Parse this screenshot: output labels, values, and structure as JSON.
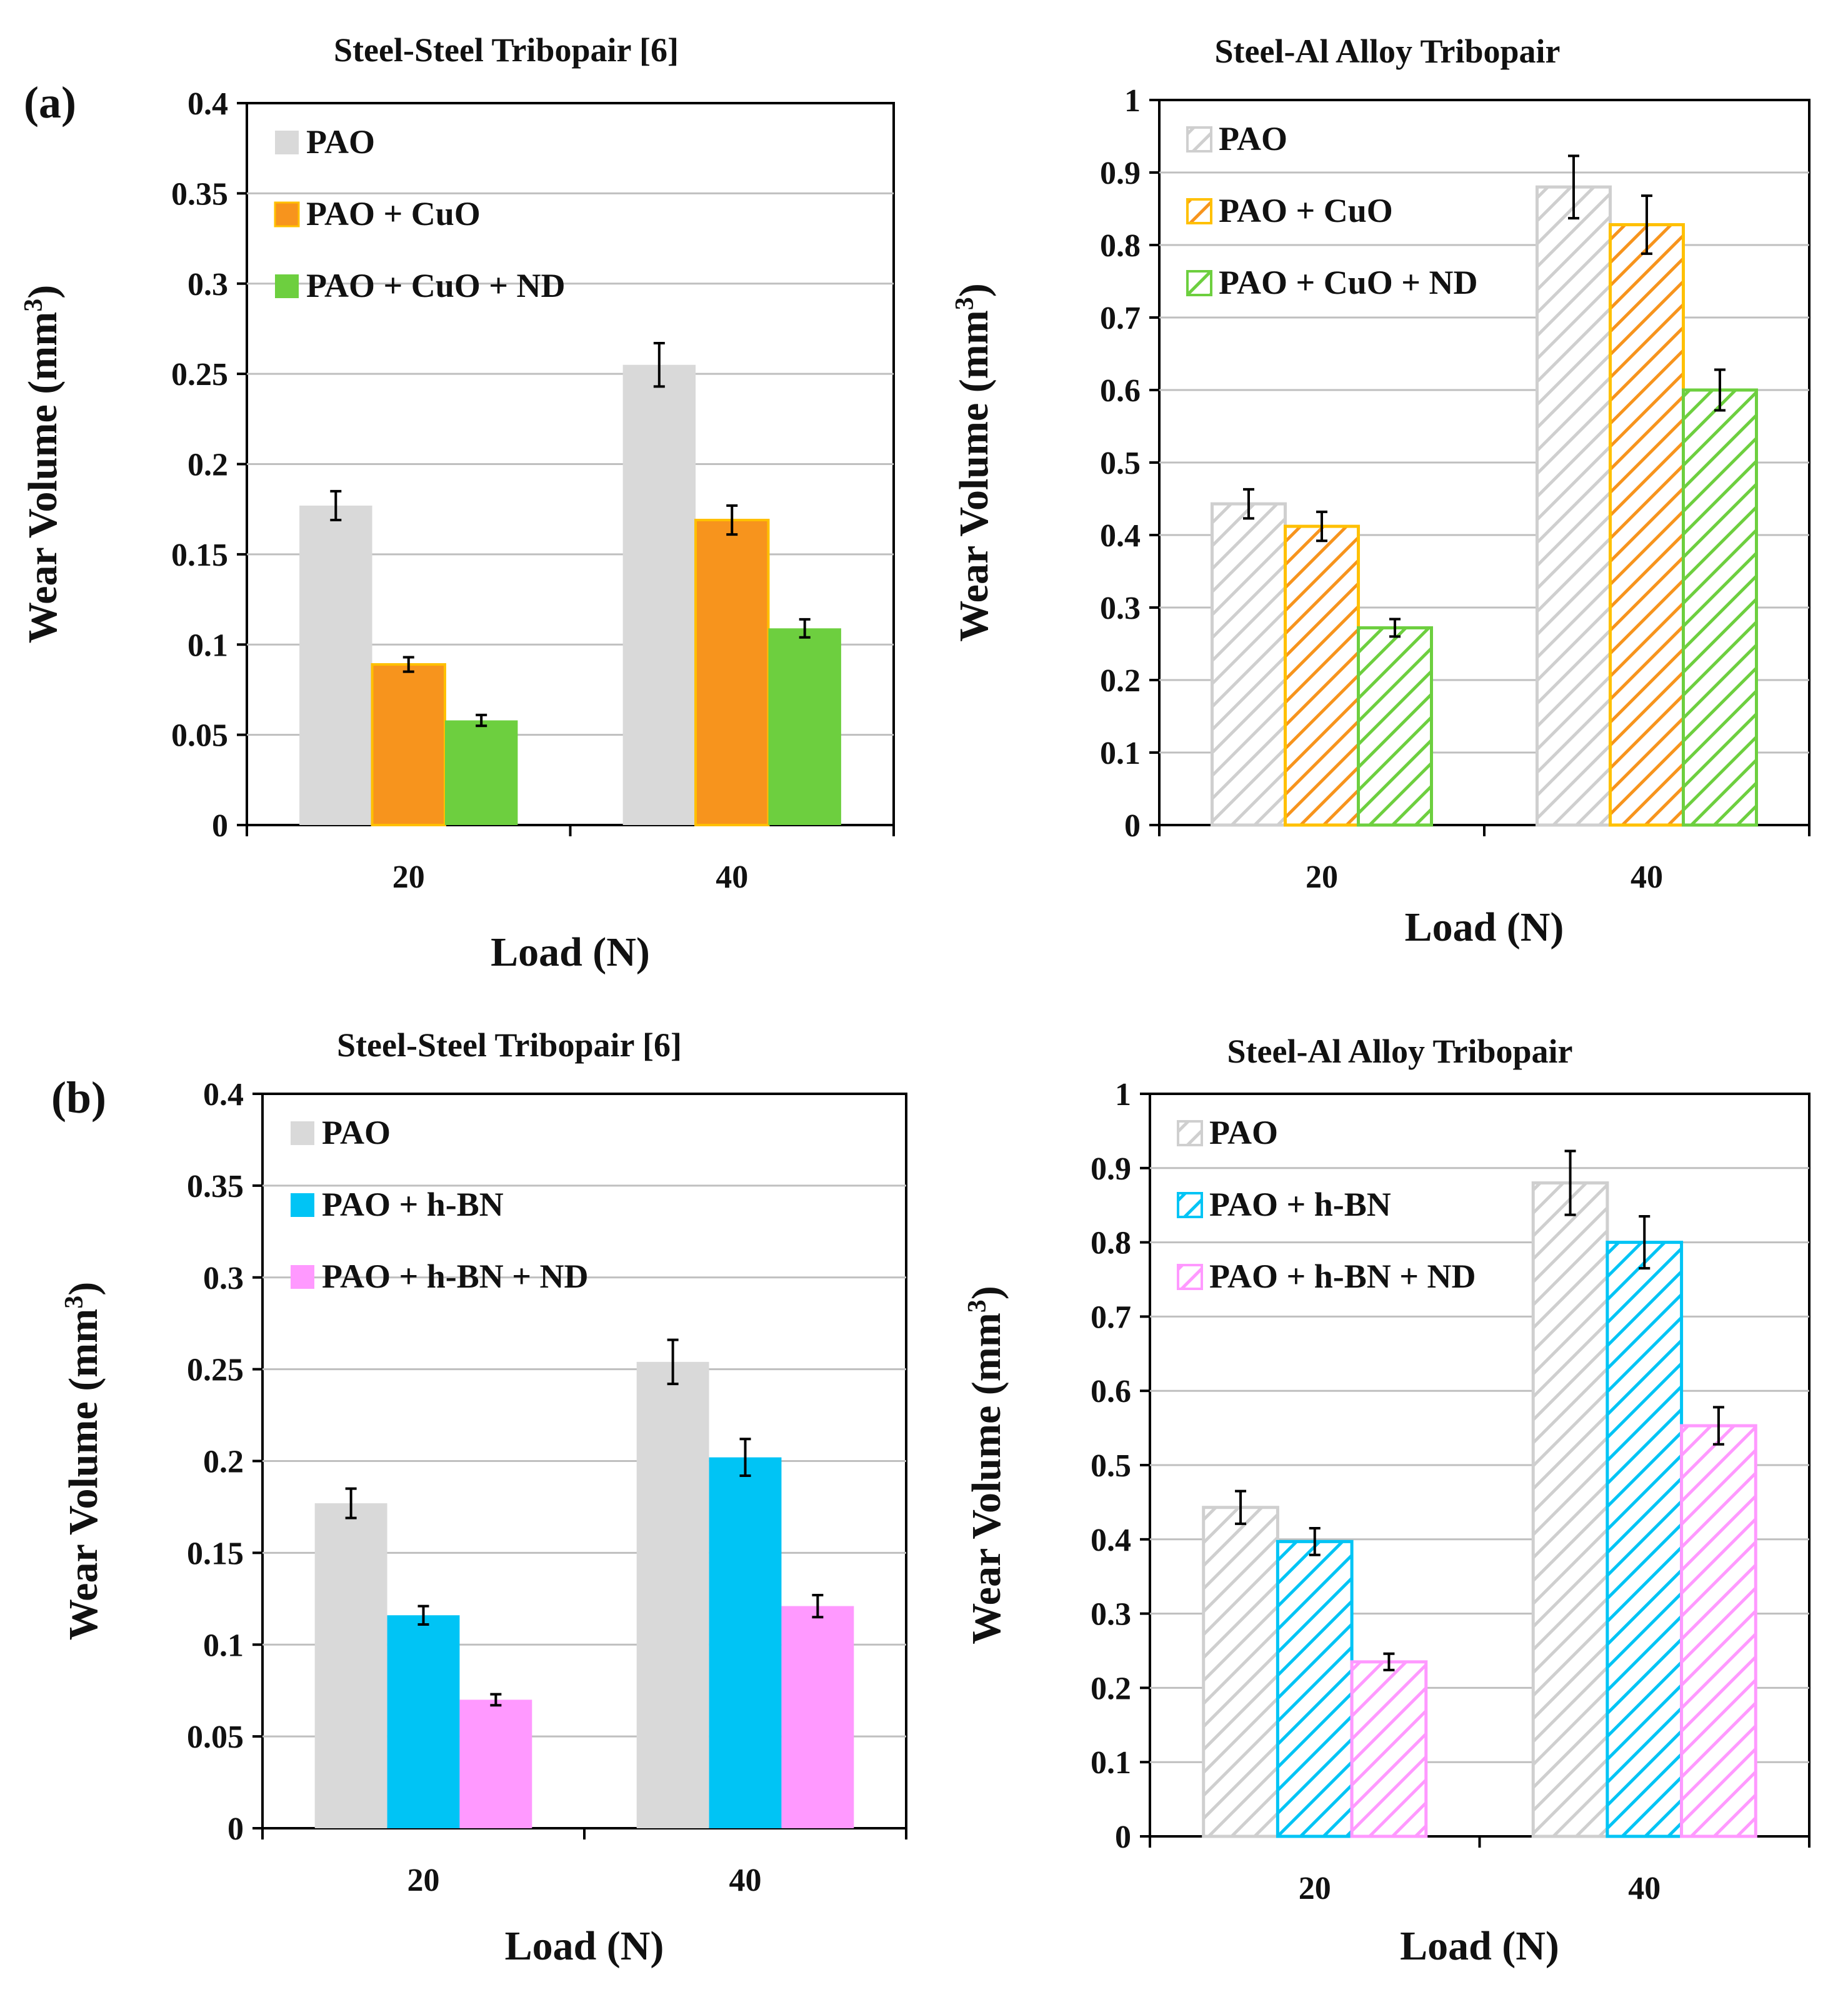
{
  "figure": {
    "panel_labels": [
      "(a)",
      "(b)"
    ]
  },
  "chart_data": [
    {
      "type": "bar",
      "style": "solid",
      "title": "Steel-Steel Tribopair [6]",
      "xlabel": "Load (N)",
      "ylabel": "Wear Volume (mm3)",
      "ylabel_main": "Wear Volume (mm",
      "ylabel_sup": "3",
      "ylabel_end": ")",
      "categories": [
        "20",
        "40"
      ],
      "ylim": [
        0,
        0.4
      ],
      "yticks": [
        0,
        0.05,
        0.1,
        0.15,
        0.2,
        0.25,
        0.3,
        0.35,
        0.4
      ],
      "ytick_labels": [
        "0",
        "0.05",
        "0.1",
        "0.15",
        "0.2",
        "0.25",
        "0.3",
        "0.35",
        "0.4"
      ],
      "grid": true,
      "legend_position": "top-left",
      "series": [
        {
          "name": "PAO",
          "values": [
            0.177,
            0.255
          ],
          "errors": [
            0.008,
            0.012
          ],
          "color": "#d9d9d9"
        },
        {
          "name": "PAO + CuO",
          "values": [
            0.089,
            0.169
          ],
          "errors": [
            0.004,
            0.008
          ],
          "color": "#f7941d",
          "edge": "#ffc000"
        },
        {
          "name": "PAO + CuO + ND",
          "values": [
            0.058,
            0.109
          ],
          "errors": [
            0.003,
            0.005
          ],
          "color": "#6dcf3f"
        }
      ]
    },
    {
      "type": "bar",
      "style": "hatched",
      "title": "Steel-Al Alloy Tribopair",
      "xlabel": "Load (N)",
      "ylabel": "Wear Volume (mm3)",
      "ylabel_main": "Wear Volume (mm",
      "ylabel_sup": "3",
      "ylabel_end": ")",
      "categories": [
        "20",
        "40"
      ],
      "ylim": [
        0,
        1
      ],
      "yticks": [
        0,
        0.1,
        0.2,
        0.3,
        0.4,
        0.5,
        0.6,
        0.7,
        0.8,
        0.9,
        1
      ],
      "ytick_labels": [
        "0",
        "0.1",
        "0.2",
        "0.3",
        "0.4",
        "0.5",
        "0.6",
        "0.7",
        "0.8",
        "0.9",
        "1"
      ],
      "grid": true,
      "legend_position": "top-left",
      "series": [
        {
          "name": "PAO",
          "values": [
            0.443,
            0.88
          ],
          "errors": [
            0.02,
            0.043
          ],
          "color": "#cfcfcf"
        },
        {
          "name": "PAO + CuO",
          "values": [
            0.412,
            0.828
          ],
          "errors": [
            0.02,
            0.04
          ],
          "color": "#f7941d",
          "edge": "#ffc000"
        },
        {
          "name": "PAO + CuO + ND",
          "values": [
            0.272,
            0.6
          ],
          "errors": [
            0.012,
            0.028
          ],
          "color": "#6dcf3f"
        }
      ]
    },
    {
      "type": "bar",
      "style": "solid",
      "title": "Steel-Steel Tribopair [6]",
      "xlabel": "Load (N)",
      "ylabel": "Wear Volume (mm3)",
      "ylabel_main": "Wear Volume (mm",
      "ylabel_sup": "3",
      "ylabel_end": ")",
      "categories": [
        "20",
        "40"
      ],
      "ylim": [
        0,
        0.4
      ],
      "yticks": [
        0,
        0.05,
        0.1,
        0.15,
        0.2,
        0.25,
        0.3,
        0.35,
        0.4
      ],
      "ytick_labels": [
        "0",
        "0.05",
        "0.1",
        "0.15",
        "0.2",
        "0.25",
        "0.3",
        "0.35",
        "0.4"
      ],
      "grid": true,
      "legend_position": "top-left",
      "series": [
        {
          "name": "PAO",
          "values": [
            0.177,
            0.254
          ],
          "errors": [
            0.008,
            0.012
          ],
          "color": "#d9d9d9"
        },
        {
          "name": "PAO + h-BN",
          "values": [
            0.116,
            0.202
          ],
          "errors": [
            0.005,
            0.01
          ],
          "color": "#00c4f5"
        },
        {
          "name": "PAO + h-BN + ND",
          "values": [
            0.07,
            0.121
          ],
          "errors": [
            0.003,
            0.006
          ],
          "color": "#ff99ff"
        }
      ]
    },
    {
      "type": "bar",
      "style": "hatched",
      "title": "Steel-Al Alloy Tribopair",
      "xlabel": "Load (N)",
      "ylabel": "Wear Volume (mm3)",
      "ylabel_main": "Wear Volume (mm",
      "ylabel_sup": "3",
      "ylabel_end": ")",
      "categories": [
        "20",
        "40"
      ],
      "ylim": [
        0,
        1
      ],
      "yticks": [
        0,
        0.1,
        0.2,
        0.3,
        0.4,
        0.5,
        0.6,
        0.7,
        0.8,
        0.9,
        1
      ],
      "ytick_labels": [
        "0",
        "0.1",
        "0.2",
        "0.3",
        "0.4",
        "0.5",
        "0.6",
        "0.7",
        "0.8",
        "0.9",
        "1"
      ],
      "grid": true,
      "legend_position": "top-left",
      "series": [
        {
          "name": "PAO",
          "values": [
            0.443,
            0.88
          ],
          "errors": [
            0.022,
            0.043
          ],
          "color": "#cfcfcf"
        },
        {
          "name": "PAO + h-BN",
          "values": [
            0.397,
            0.8
          ],
          "errors": [
            0.018,
            0.035
          ],
          "color": "#00c4f5"
        },
        {
          "name": "PAO + h-BN + ND",
          "values": [
            0.235,
            0.553
          ],
          "errors": [
            0.011,
            0.025
          ],
          "color": "#ff99ff"
        }
      ]
    }
  ]
}
